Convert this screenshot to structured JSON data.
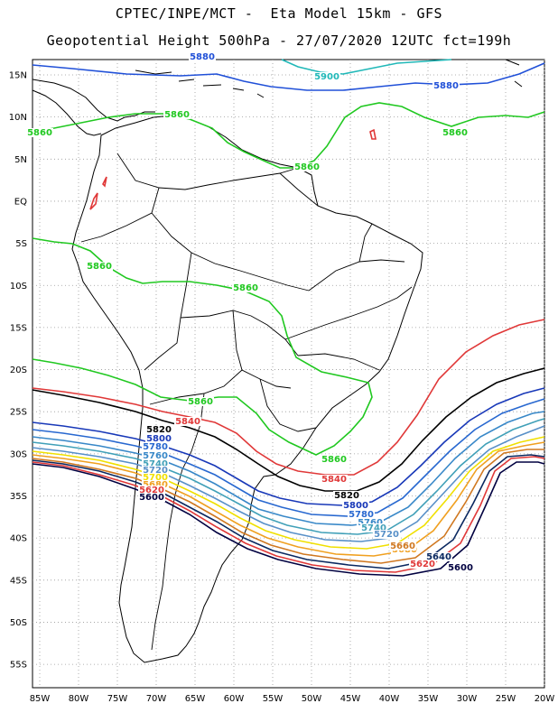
{
  "header": {
    "line1": "CPTEC/INPE/MCT -  Eta Model 15km - GFS",
    "line2": "Geopotential Height 500hPa - 27/07/2020 12UTC fct=199h"
  },
  "axes": {
    "lat_labels": [
      "15N",
      "10N",
      "5N",
      "EQ",
      "5S",
      "10S",
      "15S",
      "20S",
      "25S",
      "30S",
      "35S",
      "40S",
      "45S",
      "50S",
      "55S"
    ],
    "lon_labels": [
      "85W",
      "80W",
      "75W",
      "70W",
      "65W",
      "60W",
      "55W",
      "50W",
      "45W",
      "40W",
      "35W",
      "30W",
      "25W",
      "20W"
    ]
  },
  "contour_labels": {
    "c5900": "5900",
    "c5880": "5880",
    "c5860": "5860",
    "c5840": "5840",
    "c5820": "5820",
    "c5800": "5800",
    "c5780": "5780",
    "c5760": "5760",
    "c5740": "5740",
    "c5720": "5720",
    "c5700": "5700",
    "c5680": "5680",
    "c5660": "5660",
    "c5640": "5640",
    "c5620": "5620",
    "c5600": "5600"
  },
  "contour_colors": {
    "c5900": "#20b8b8",
    "c5880": "#2050d8",
    "c5860": "#20c820",
    "c5840": "#e03838",
    "c5820": "#000000",
    "c5800": "#1838b8",
    "c5780": "#2868d0",
    "c5760": "#3888c8",
    "c5740": "#40a0b8",
    "c5720": "#5890c8",
    "c5700": "#f0e000",
    "c5680": "#f0a020",
    "c5660": "#d07820",
    "c5640": "#0a2860",
    "c5620": "#e03838",
    "c5600": "#000040"
  }
}
